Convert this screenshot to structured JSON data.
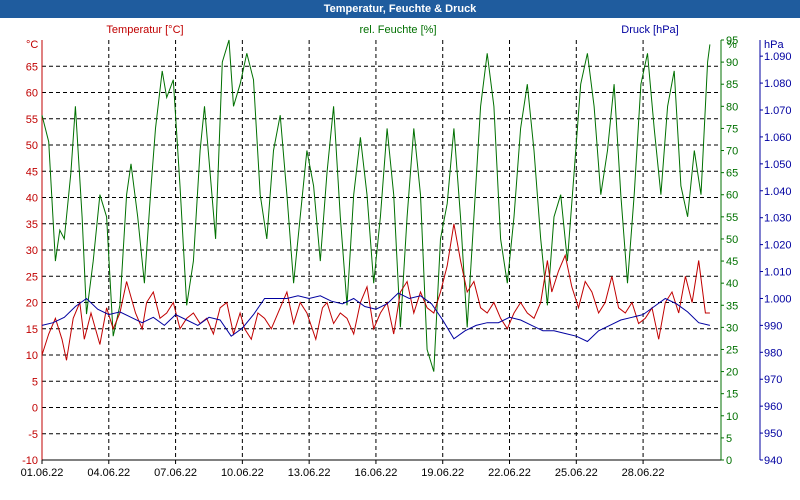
{
  "window": {
    "title": "Temperatur, Feuchte & Druck"
  },
  "chart_data": {
    "type": "line",
    "title": "Temperatur, Feuchte & Druck",
    "grid": true,
    "x": {
      "tick_labels": [
        "01.06.22",
        "04.06.22",
        "07.06.22",
        "10.06.22",
        "13.06.22",
        "16.06.22",
        "19.06.22",
        "22.06.22",
        "25.06.22",
        "28.06.22"
      ],
      "tick_days": [
        0,
        3,
        6,
        9,
        12,
        15,
        18,
        21,
        24,
        27
      ],
      "range_days": [
        0,
        30.5
      ]
    },
    "axes": {
      "left": {
        "unit": "°C",
        "range": [
          -10,
          70
        ],
        "ticks": [
          -10,
          -5,
          0,
          5,
          10,
          15,
          20,
          25,
          30,
          35,
          40,
          45,
          50,
          55,
          60,
          65
        ],
        "color": "#c00000"
      },
      "right1": {
        "unit": "%",
        "range": [
          0,
          95
        ],
        "ticks": [
          0,
          5,
          10,
          15,
          20,
          25,
          30,
          35,
          40,
          45,
          50,
          55,
          60,
          65,
          70,
          75,
          80,
          85,
          90,
          95
        ],
        "color": "#007000"
      },
      "right2": {
        "unit": "hPa",
        "range": [
          940,
          1096
        ],
        "ticks": [
          "940",
          "950",
          "960",
          "970",
          "980",
          "990",
          "1.000",
          "1.010",
          "1.020",
          "1.030",
          "1.040",
          "1.050",
          "1.060",
          "1.070",
          "1.080",
          "1.090"
        ],
        "tick_values": [
          940,
          950,
          960,
          970,
          980,
          990,
          1000,
          1010,
          1020,
          1030,
          1040,
          1050,
          1060,
          1070,
          1080,
          1090
        ],
        "color": "#0000a0"
      }
    },
    "series": [
      {
        "name": "Temperatur [°C]",
        "axis": "left",
        "color": "#c00000",
        "points": [
          [
            0,
            10
          ],
          [
            0.3,
            14
          ],
          [
            0.6,
            17
          ],
          [
            0.9,
            13
          ],
          [
            1.1,
            9
          ],
          [
            1.4,
            17
          ],
          [
            1.7,
            20
          ],
          [
            1.9,
            13
          ],
          [
            2.2,
            18
          ],
          [
            2.6,
            12
          ],
          [
            2.9,
            19
          ],
          [
            3.2,
            15
          ],
          [
            3.5,
            18
          ],
          [
            3.8,
            24
          ],
          [
            4.2,
            18
          ],
          [
            4.5,
            15
          ],
          [
            4.7,
            20
          ],
          [
            5.0,
            22
          ],
          [
            5.3,
            17
          ],
          [
            5.6,
            18
          ],
          [
            5.9,
            20
          ],
          [
            6.2,
            15
          ],
          [
            6.5,
            17
          ],
          [
            6.8,
            18
          ],
          [
            7.1,
            16
          ],
          [
            7.4,
            17
          ],
          [
            7.7,
            14
          ],
          [
            8.0,
            19
          ],
          [
            8.3,
            20
          ],
          [
            8.6,
            14
          ],
          [
            8.9,
            18
          ],
          [
            9.1,
            15
          ],
          [
            9.4,
            13
          ],
          [
            9.7,
            18
          ],
          [
            10.0,
            17
          ],
          [
            10.3,
            15
          ],
          [
            10.7,
            19
          ],
          [
            11.0,
            22
          ],
          [
            11.3,
            16
          ],
          [
            11.6,
            20
          ],
          [
            11.9,
            18
          ],
          [
            12.3,
            13
          ],
          [
            12.6,
            19
          ],
          [
            12.8,
            20
          ],
          [
            13.1,
            16
          ],
          [
            13.4,
            18
          ],
          [
            13.7,
            17
          ],
          [
            14.0,
            14
          ],
          [
            14.3,
            20
          ],
          [
            14.6,
            23
          ],
          [
            14.9,
            15
          ],
          [
            15.2,
            18
          ],
          [
            15.5,
            20
          ],
          [
            15.8,
            14
          ],
          [
            16.1,
            22
          ],
          [
            16.4,
            24
          ],
          [
            16.7,
            18
          ],
          [
            17.0,
            22
          ],
          [
            17.3,
            19
          ],
          [
            17.6,
            18
          ],
          [
            17.9,
            22
          ],
          [
            18.2,
            27
          ],
          [
            18.5,
            35
          ],
          [
            18.8,
            28
          ],
          [
            19.1,
            22
          ],
          [
            19.4,
            24
          ],
          [
            19.7,
            19
          ],
          [
            20.0,
            18
          ],
          [
            20.3,
            20
          ],
          [
            20.6,
            17
          ],
          [
            20.9,
            15
          ],
          [
            21.2,
            18
          ],
          [
            21.5,
            20
          ],
          [
            21.8,
            18
          ],
          [
            22.1,
            17
          ],
          [
            22.4,
            20
          ],
          [
            22.7,
            28
          ],
          [
            22.9,
            22
          ],
          [
            23.2,
            26
          ],
          [
            23.5,
            29
          ],
          [
            23.8,
            23
          ],
          [
            24.1,
            19
          ],
          [
            24.4,
            24
          ],
          [
            24.7,
            22
          ],
          [
            25.0,
            18
          ],
          [
            25.3,
            20
          ],
          [
            25.6,
            25
          ],
          [
            25.9,
            19
          ],
          [
            26.2,
            18
          ],
          [
            26.5,
            20
          ],
          [
            26.8,
            16
          ],
          [
            27.1,
            17
          ],
          [
            27.4,
            19
          ],
          [
            27.7,
            13
          ],
          [
            28.0,
            20
          ],
          [
            28.3,
            22
          ],
          [
            28.6,
            18
          ],
          [
            28.9,
            25
          ],
          [
            29.2,
            20
          ],
          [
            29.5,
            28
          ],
          [
            29.8,
            18
          ],
          [
            30.0,
            18
          ]
        ]
      },
      {
        "name": "rel. Feuchte [%]",
        "axis": "right1",
        "color": "#007000",
        "points": [
          [
            0,
            78
          ],
          [
            0.3,
            72
          ],
          [
            0.6,
            45
          ],
          [
            0.8,
            52
          ],
          [
            1.0,
            50
          ],
          [
            1.3,
            65
          ],
          [
            1.5,
            80
          ],
          [
            1.8,
            55
          ],
          [
            2.0,
            33
          ],
          [
            2.3,
            45
          ],
          [
            2.6,
            60
          ],
          [
            2.9,
            55
          ],
          [
            3.2,
            28
          ],
          [
            3.5,
            35
          ],
          [
            3.8,
            60
          ],
          [
            4.0,
            67
          ],
          [
            4.3,
            55
          ],
          [
            4.6,
            40
          ],
          [
            4.9,
            62
          ],
          [
            5.1,
            75
          ],
          [
            5.4,
            88
          ],
          [
            5.6,
            82
          ],
          [
            5.9,
            86
          ],
          [
            6.2,
            62
          ],
          [
            6.5,
            35
          ],
          [
            6.8,
            45
          ],
          [
            7.1,
            70
          ],
          [
            7.3,
            80
          ],
          [
            7.6,
            62
          ],
          [
            7.8,
            50
          ],
          [
            8.1,
            90
          ],
          [
            8.4,
            95
          ],
          [
            8.6,
            80
          ],
          [
            8.9,
            85
          ],
          [
            9.2,
            92
          ],
          [
            9.5,
            86
          ],
          [
            9.8,
            60
          ],
          [
            10.1,
            50
          ],
          [
            10.4,
            70
          ],
          [
            10.7,
            78
          ],
          [
            11.0,
            60
          ],
          [
            11.3,
            40
          ],
          [
            11.6,
            55
          ],
          [
            11.9,
            70
          ],
          [
            12.2,
            62
          ],
          [
            12.5,
            45
          ],
          [
            12.8,
            65
          ],
          [
            13.1,
            80
          ],
          [
            13.4,
            55
          ],
          [
            13.7,
            35
          ],
          [
            14.0,
            60
          ],
          [
            14.3,
            73
          ],
          [
            14.6,
            60
          ],
          [
            14.9,
            40
          ],
          [
            15.2,
            55
          ],
          [
            15.5,
            75
          ],
          [
            15.8,
            60
          ],
          [
            16.1,
            30
          ],
          [
            16.4,
            55
          ],
          [
            16.7,
            75
          ],
          [
            17.0,
            60
          ],
          [
            17.3,
            25
          ],
          [
            17.6,
            20
          ],
          [
            17.9,
            50
          ],
          [
            18.2,
            58
          ],
          [
            18.5,
            75
          ],
          [
            18.8,
            55
          ],
          [
            19.1,
            30
          ],
          [
            19.4,
            55
          ],
          [
            19.7,
            80
          ],
          [
            20.0,
            92
          ],
          [
            20.3,
            80
          ],
          [
            20.6,
            50
          ],
          [
            20.9,
            40
          ],
          [
            21.2,
            55
          ],
          [
            21.5,
            75
          ],
          [
            21.8,
            85
          ],
          [
            22.1,
            70
          ],
          [
            22.4,
            50
          ],
          [
            22.7,
            35
          ],
          [
            23.0,
            55
          ],
          [
            23.3,
            60
          ],
          [
            23.6,
            45
          ],
          [
            23.9,
            65
          ],
          [
            24.2,
            85
          ],
          [
            24.5,
            92
          ],
          [
            24.8,
            80
          ],
          [
            25.1,
            60
          ],
          [
            25.4,
            70
          ],
          [
            25.7,
            85
          ],
          [
            26.0,
            60
          ],
          [
            26.3,
            40
          ],
          [
            26.6,
            60
          ],
          [
            26.9,
            85
          ],
          [
            27.2,
            92
          ],
          [
            27.5,
            75
          ],
          [
            27.8,
            60
          ],
          [
            28.1,
            80
          ],
          [
            28.4,
            88
          ],
          [
            28.7,
            62
          ],
          [
            29.0,
            55
          ],
          [
            29.3,
            70
          ],
          [
            29.6,
            60
          ],
          [
            29.9,
            90
          ],
          [
            30.0,
            94
          ]
        ]
      },
      {
        "name": "Druck [hPa]",
        "axis": "right2",
        "color": "#0000a0",
        "points": [
          [
            0,
            990
          ],
          [
            0.5,
            991
          ],
          [
            1.0,
            993
          ],
          [
            1.5,
            997
          ],
          [
            2.0,
            1000
          ],
          [
            2.5,
            996
          ],
          [
            3.0,
            994
          ],
          [
            3.5,
            995
          ],
          [
            4.0,
            993
          ],
          [
            4.5,
            991
          ],
          [
            5.0,
            993
          ],
          [
            5.5,
            990
          ],
          [
            6.0,
            994
          ],
          [
            6.5,
            992
          ],
          [
            7.0,
            990
          ],
          [
            7.5,
            993
          ],
          [
            8.0,
            992
          ],
          [
            8.5,
            986
          ],
          [
            9.0,
            989
          ],
          [
            9.5,
            994
          ],
          [
            10.0,
            1000
          ],
          [
            10.5,
            1000
          ],
          [
            11.0,
            1000
          ],
          [
            11.5,
            1001
          ],
          [
            12.0,
            1000
          ],
          [
            12.5,
            1001
          ],
          [
            13.0,
            999
          ],
          [
            13.5,
            998
          ],
          [
            14.0,
            1000
          ],
          [
            14.5,
            997
          ],
          [
            15.0,
            996
          ],
          [
            15.5,
            998
          ],
          [
            16.0,
            1002
          ],
          [
            16.5,
            1000
          ],
          [
            17.0,
            1001
          ],
          [
            17.5,
            998
          ],
          [
            18.0,
            992
          ],
          [
            18.5,
            985
          ],
          [
            19.0,
            988
          ],
          [
            19.5,
            990
          ],
          [
            20.0,
            991
          ],
          [
            20.5,
            991
          ],
          [
            21.0,
            993
          ],
          [
            21.5,
            992
          ],
          [
            22.0,
            990
          ],
          [
            22.5,
            988
          ],
          [
            23.0,
            988
          ],
          [
            23.5,
            987
          ],
          [
            24.0,
            986
          ],
          [
            24.5,
            984
          ],
          [
            25.0,
            988
          ],
          [
            25.5,
            990
          ],
          [
            26.0,
            992
          ],
          [
            26.5,
            993
          ],
          [
            27.0,
            994
          ],
          [
            27.5,
            997
          ],
          [
            28.0,
            1000
          ],
          [
            28.5,
            998
          ],
          [
            29.0,
            995
          ],
          [
            29.5,
            991
          ],
          [
            30.0,
            990
          ]
        ]
      }
    ]
  }
}
